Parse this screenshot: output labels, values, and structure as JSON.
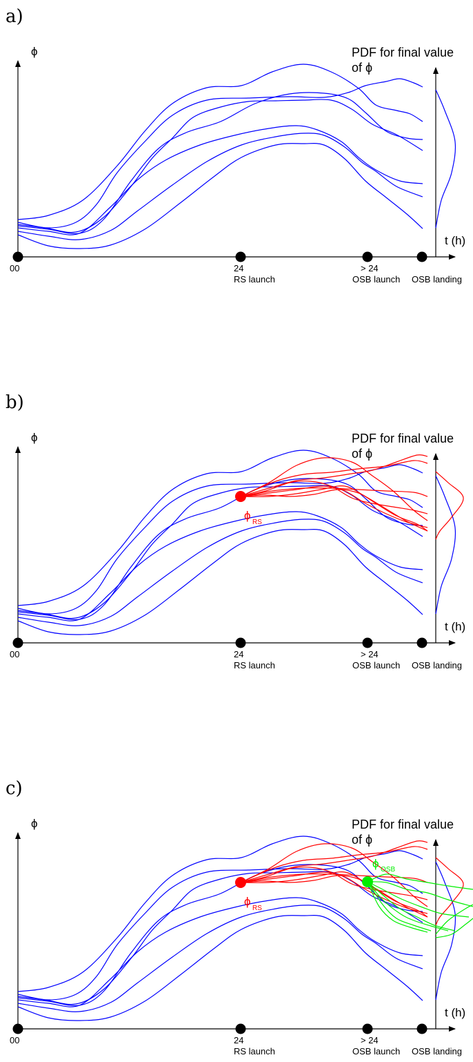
{
  "panels": [
    {
      "letter": "a)",
      "show_rs": false,
      "show_osb": false
    },
    {
      "letter": "b)",
      "show_rs": true,
      "show_osb": false
    },
    {
      "letter": "c)",
      "show_rs": true,
      "show_osb": true
    }
  ],
  "y_axis_label": "ϕ",
  "x_axis_label": "t (h)",
  "pdf_title_line1": "PDF for final value",
  "pdf_title_line2": "of ϕ",
  "ticks": [
    {
      "top": "00",
      "bottom": ""
    },
    {
      "top": "24",
      "bottom": "RS launch"
    },
    {
      "top": "> 24",
      "bottom": "OSB launch"
    },
    {
      "top": "",
      "bottom": "OSB landing"
    }
  ],
  "rs_symbol": "ϕ",
  "rs_subscript": "RS",
  "osb_symbol": "ϕ",
  "osb_subscript": "OSB",
  "colors": {
    "ensemble": "#0000ff",
    "rs": "#ff0000",
    "osb": "#00ee00",
    "axis": "#000000"
  }
}
